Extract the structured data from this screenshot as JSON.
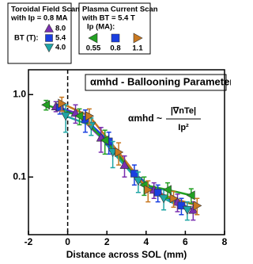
{
  "chart_data": {
    "type": "line",
    "log_y": true,
    "xlim": [
      -2,
      8
    ],
    "ylim": [
      0.02,
      2
    ],
    "xticks": [
      -2,
      0,
      2,
      4,
      6,
      8
    ],
    "yticks": [
      {
        "value": 1,
        "label": "1.0"
      },
      0.1
    ],
    "xlabel": "Distance across SOL (mm)",
    "vline": 0,
    "title": "αmhd - Ballooning Parameter",
    "formula": {
      "lhs": "αmhd ~",
      "numerator": "|∇nTe|",
      "denominator": "Ip²"
    },
    "legends": [
      {
        "title": [
          "Toroidal Field Scan",
          "with Ip = 0.8 MA"
        ],
        "label": "BT (T):",
        "entries": [
          {
            "name": "8.0",
            "series": 0
          },
          {
            "name": "5.4",
            "series": 1
          },
          {
            "name": "4.0",
            "series": 2
          }
        ]
      },
      {
        "title": [
          "Plasma Current Scan",
          "with BT = 5.4 T"
        ],
        "label": "Ip (MA):",
        "entries": [
          {
            "name": "0.55",
            "series": 3
          },
          {
            "name": "0.8",
            "series": 1
          },
          {
            "name": "1.1",
            "series": 4
          }
        ]
      }
    ],
    "series": [
      {
        "color": "#7a2fb0",
        "marker": "up",
        "x": [
          -0.6,
          0.4,
          1.7,
          2.9,
          4.4,
          5.6,
          6.4
        ],
        "values": [
          0.72,
          0.6,
          0.3,
          0.14,
          0.07,
          0.05,
          0.04
        ],
        "errors": [
          0.1,
          0.15,
          0.1,
          0.04,
          0.015,
          0.012,
          0.01
        ]
      },
      {
        "color": "#1a3fe0",
        "marker": "square",
        "x": [
          -0.4,
          0.9,
          2.1,
          3.4,
          4.6,
          5.8
        ],
        "values": [
          0.7,
          0.5,
          0.27,
          0.11,
          0.065,
          0.045
        ],
        "errors": [
          0.12,
          0.15,
          0.08,
          0.03,
          0.015,
          0.01
        ]
      },
      {
        "color": "#1fa5a5",
        "marker": "down",
        "x": [
          -0.1,
          1.2,
          2.3,
          3.6,
          4.9,
          6.1
        ],
        "values": [
          0.55,
          0.42,
          0.2,
          0.09,
          0.055,
          0.04
        ],
        "errors": [
          0.2,
          0.1,
          0.07,
          0.025,
          0.015,
          0.01
        ]
      },
      {
        "color": "#22a022",
        "marker": "left",
        "x": [
          -1.1,
          0.6,
          1.9,
          3.9,
          5.1,
          6.3
        ],
        "values": [
          0.75,
          0.55,
          0.28,
          0.08,
          0.07,
          0.06
        ],
        "errors": [
          0.1,
          0.12,
          0.09,
          0.02,
          0.015,
          0.012
        ]
      },
      {
        "color": "#c87820",
        "marker": "right",
        "x": [
          -0.3,
          1.1,
          2.6,
          4.1,
          5.4,
          6.6
        ],
        "values": [
          0.78,
          0.55,
          0.2,
          0.07,
          0.055,
          0.045
        ],
        "errors": [
          0.15,
          0.12,
          0.06,
          0.02,
          0.012,
          0.01
        ]
      }
    ]
  }
}
